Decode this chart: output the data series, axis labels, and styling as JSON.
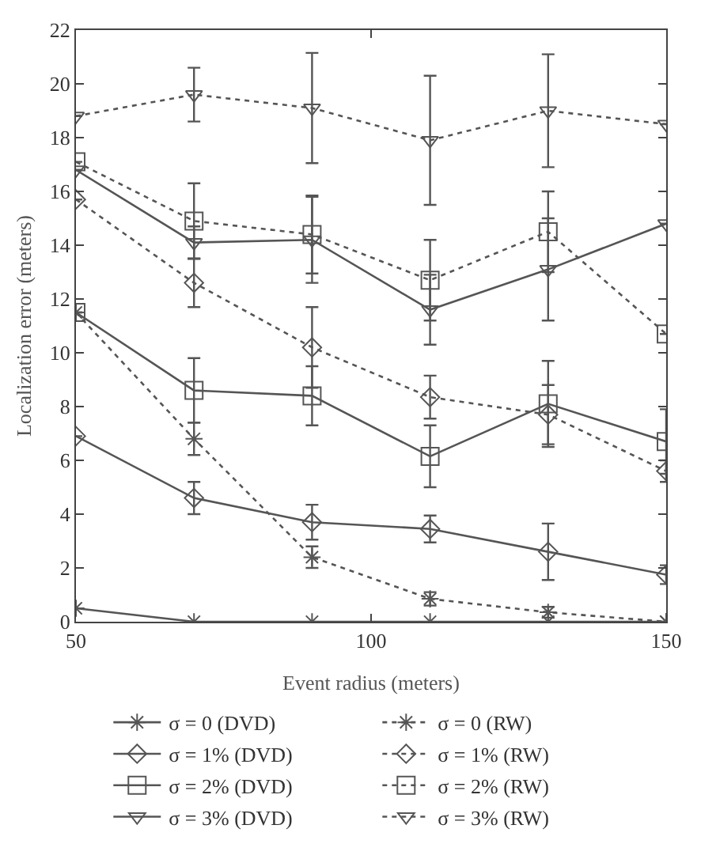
{
  "chart_data": {
    "type": "line",
    "xlabel": "Event radius (meters)",
    "ylabel": "Localization error (meters)",
    "x": [
      50,
      70,
      90,
      110,
      130,
      150
    ],
    "xlim": [
      50,
      150
    ],
    "xticks": [
      50,
      100,
      150
    ],
    "ylim": [
      0,
      22
    ],
    "yticks": [
      0,
      2,
      4,
      6,
      8,
      10,
      12,
      14,
      16,
      18,
      20,
      22
    ],
    "legend": "bottom",
    "series": [
      {
        "name": "σ = 0 (DVD)",
        "color": "#555555",
        "marker": "cross",
        "line_style": "solid",
        "values": [
          0.5,
          0,
          0,
          0,
          0,
          0
        ]
      },
      {
        "name": "σ = 0 (RW)",
        "color": "#555555",
        "marker": "cross",
        "line_style": "dotted",
        "values": [
          11.5,
          6.8,
          2.4,
          0.85,
          0.35,
          0
        ],
        "errors": [
          null,
          0.6,
          0.4,
          0.25,
          0.2,
          null
        ]
      },
      {
        "name": "σ = 1% (DVD)",
        "color": "#555555",
        "marker": "diamond",
        "line_style": "solid",
        "values": [
          6.9,
          4.6,
          3.7,
          3.45,
          2.6,
          1.75
        ],
        "errors": [
          null,
          0.6,
          0.65,
          0.5,
          1.05,
          0.35
        ]
      },
      {
        "name": "σ = 1% (RW)",
        "color": "#555555",
        "marker": "diamond",
        "line_style": "dotted",
        "values": [
          15.7,
          12.6,
          10.2,
          8.35,
          7.7,
          5.6
        ],
        "errors": [
          null,
          0.9,
          1.5,
          0.8,
          1.1,
          0.4
        ]
      },
      {
        "name": "σ = 2% (DVD)",
        "color": "#555555",
        "marker": "square",
        "line_style": "solid",
        "values": [
          11.5,
          8.6,
          8.4,
          6.15,
          8.1,
          6.7
        ],
        "errors": [
          null,
          1.2,
          1.1,
          1.15,
          1.6,
          1.2
        ]
      },
      {
        "name": "σ = 2% (RW)",
        "color": "#555555",
        "marker": "square",
        "line_style": "dotted",
        "values": [
          17.1,
          14.9,
          14.4,
          12.7,
          14.5,
          10.7
        ],
        "errors": [
          null,
          1.4,
          1.45,
          1.5,
          1.5,
          null
        ]
      },
      {
        "name": "σ = 3% (DVD)",
        "color": "#555555",
        "marker": "triangle",
        "line_style": "solid",
        "values": [
          16.8,
          14.1,
          14.2,
          11.6,
          13.1,
          14.8
        ],
        "errors": [
          null,
          0.6,
          1.6,
          1.3,
          1.9,
          null
        ]
      },
      {
        "name": "σ = 3% (RW)",
        "color": "#555555",
        "marker": "triangle",
        "line_style": "dotted",
        "values": [
          18.8,
          19.6,
          19.1,
          17.9,
          19.0,
          18.5
        ],
        "errors": [
          null,
          1.0,
          2.05,
          2.4,
          2.1,
          null
        ]
      }
    ]
  }
}
